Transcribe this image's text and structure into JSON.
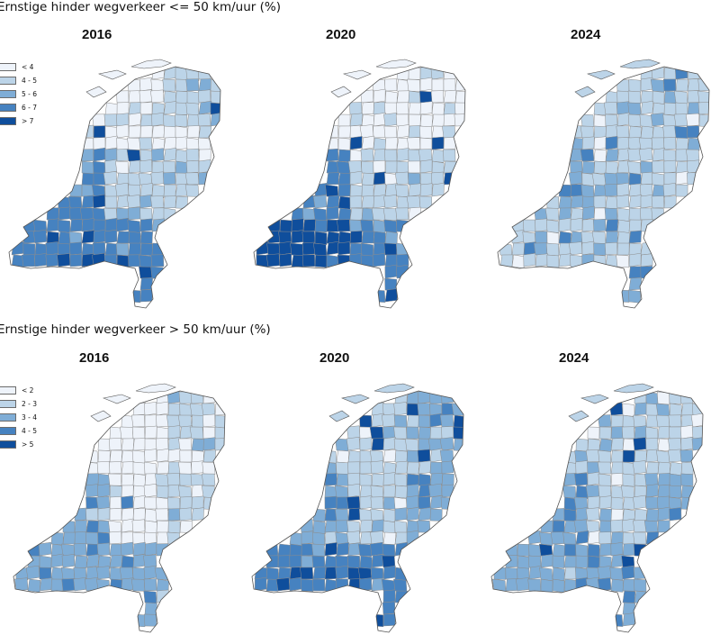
{
  "sections": [
    {
      "title": "Ernstige hinder wegverkeer <= 50 km/uur (%)",
      "years": [
        "2016",
        "2020",
        "2024"
      ],
      "legend": [
        {
          "label": "< 4",
          "color": "#eef3fa"
        },
        {
          "label": "4 - 5",
          "color": "#bcd4e8"
        },
        {
          "label": "5 - 6",
          "color": "#7fadd6"
        },
        {
          "label": "6 - 7",
          "color": "#4682c0"
        },
        {
          "label": "> 7",
          "color": "#0f4e9c"
        }
      ],
      "map_levels": [
        {
          "north": 0,
          "northeast": 1,
          "east": 1,
          "center": 1,
          "west": 3,
          "southwest": 3,
          "south": 3,
          "limburg": 3,
          "accents": 4
        },
        {
          "north": 0,
          "northeast": 0,
          "east": 1,
          "center": 1,
          "west": 3,
          "southwest": 4,
          "south": 3,
          "limburg": 3,
          "accents": 4
        },
        {
          "north": 1,
          "northeast": 1,
          "east": 1,
          "center": 1,
          "west": 2,
          "southwest": 1,
          "south": 1,
          "limburg": 2,
          "accents": 3
        }
      ]
    },
    {
      "title": "Ernstige hinder wegverkeer > 50 km/uur (%)",
      "years": [
        "2016",
        "2020",
        "2024"
      ],
      "legend": [
        {
          "label": "< 2",
          "color": "#eef3fa"
        },
        {
          "label": "2 - 3",
          "color": "#bcd4e8"
        },
        {
          "label": "3 - 4",
          "color": "#7fadd6"
        },
        {
          "label": "4 - 5",
          "color": "#4682c0"
        },
        {
          "label": "> 5",
          "color": "#0f4e9c"
        }
      ],
      "map_levels": [
        {
          "north": 0,
          "northeast": 1,
          "east": 1,
          "center": 0,
          "west": 2,
          "southwest": 2,
          "south": 2,
          "limburg": 2,
          "accents": 3
        },
        {
          "north": 1,
          "northeast": 2,
          "east": 2,
          "center": 1,
          "west": 2,
          "southwest": 3,
          "south": 3,
          "limburg": 3,
          "accents": 4
        },
        {
          "north": 1,
          "northeast": 1,
          "east": 2,
          "center": 1,
          "west": 2,
          "southwest": 2,
          "south": 2,
          "limburg": 2,
          "accents": 4
        }
      ]
    }
  ]
}
